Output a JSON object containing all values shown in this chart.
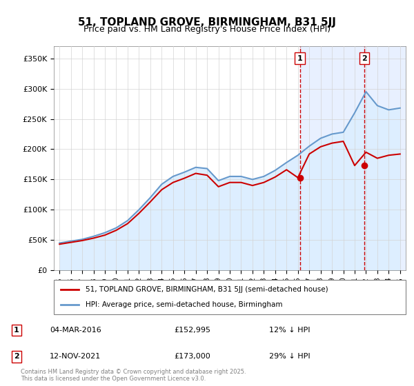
{
  "title1": "51, TOPLAND GROVE, BIRMINGHAM, B31 5JJ",
  "title2": "Price paid vs. HM Land Registry's House Price Index (HPI)",
  "ylabel_ticks": [
    "£0",
    "£50K",
    "£100K",
    "£150K",
    "£200K",
    "£250K",
    "£300K",
    "£350K"
  ],
  "ytick_values": [
    0,
    50000,
    100000,
    150000,
    200000,
    250000,
    300000,
    350000
  ],
  "ylim": [
    0,
    370000
  ],
  "hpi_color": "#6699cc",
  "hpi_fill_color": "#ddeeff",
  "price_color": "#cc0000",
  "highlight_bg_color": "#e8f0ff",
  "vline_color": "#cc0000",
  "marker1_date_idx": 21,
  "marker1_value": 152995,
  "marker2_date_idx": 26,
  "marker2_value": 173000,
  "legend_label1": "51, TOPLAND GROVE, BIRMINGHAM, B31 5JJ (semi-detached house)",
  "legend_label2": "HPI: Average price, semi-detached house, Birmingham",
  "annotation1_label": "1",
  "annotation1_date": "04-MAR-2016",
  "annotation1_price": "£152,995",
  "annotation1_hpi": "12% ↓ HPI",
  "annotation2_label": "2",
  "annotation2_date": "12-NOV-2021",
  "annotation2_price": "£173,000",
  "annotation2_hpi": "29% ↓ HPI",
  "footer": "Contains HM Land Registry data © Crown copyright and database right 2025.\nThis data is licensed under the Open Government Licence v3.0.",
  "x_years": [
    1995,
    1996,
    1997,
    1998,
    1999,
    2000,
    2001,
    2002,
    2003,
    2004,
    2005,
    2006,
    2007,
    2008,
    2009,
    2010,
    2011,
    2012,
    2013,
    2014,
    2015,
    2016,
    2017,
    2018,
    2019,
    2020,
    2021,
    2022,
    2023,
    2024,
    2025
  ],
  "hpi_values": [
    45000,
    48000,
    51000,
    56000,
    62000,
    70000,
    82000,
    100000,
    120000,
    142000,
    155000,
    162000,
    170000,
    168000,
    148000,
    155000,
    155000,
    150000,
    155000,
    165000,
    178000,
    190000,
    205000,
    218000,
    225000,
    228000,
    260000,
    295000,
    272000,
    265000,
    268000
  ],
  "price_values": [
    43000,
    46000,
    49000,
    53000,
    58000,
    66000,
    77000,
    94000,
    113000,
    133000,
    145000,
    152000,
    160000,
    157000,
    138000,
    145000,
    145000,
    140000,
    145000,
    154000,
    166000,
    152995,
    192000,
    204000,
    210000,
    213000,
    173000,
    195000,
    185000,
    190000,
    192000
  ]
}
